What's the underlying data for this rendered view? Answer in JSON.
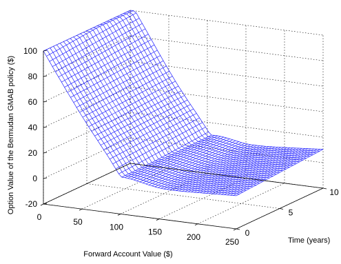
{
  "chart_data": {
    "type": "surface",
    "title": "",
    "xlabel": "Forward Account Value ($)",
    "ylabel": "Time (years)",
    "zlabel": "Option Value of the Bermudan GMAB policy ($)",
    "xlim": [
      0,
      250
    ],
    "ylim": [
      0,
      10
    ],
    "zlim": [
      -20,
      100
    ],
    "x_ticks": [
      "0",
      "50",
      "100",
      "150",
      "200",
      "250"
    ],
    "y_ticks": [
      "0",
      "5",
      "10"
    ],
    "z_ticks": [
      "-20",
      "0",
      "20",
      "40",
      "60",
      "80",
      "100"
    ],
    "grid": true,
    "mesh_color": "#2020ff",
    "surface_description_points": [
      {
        "x": 0,
        "y": 0,
        "z": 100
      },
      {
        "x": 0,
        "y": 10,
        "z": 100
      },
      {
        "x": 100,
        "y": 0,
        "z": 3
      },
      {
        "x": 150,
        "y": 5,
        "z": 10
      },
      {
        "x": 250,
        "y": 0,
        "z": 5
      },
      {
        "x": 250,
        "y": 10,
        "z": 10
      }
    ]
  }
}
